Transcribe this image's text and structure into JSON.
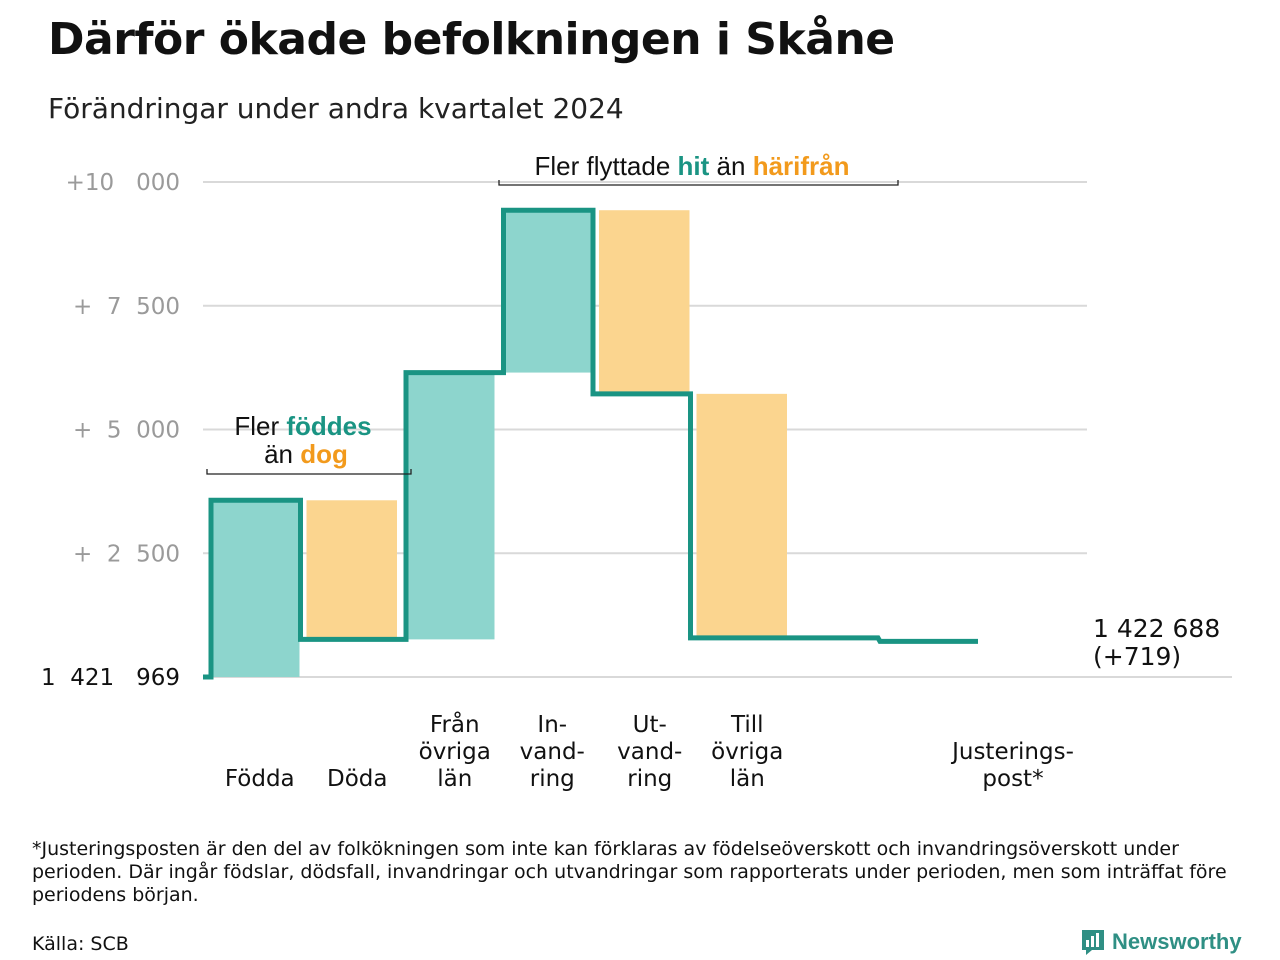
{
  "title": "Därför ökade befolkningen i Skåne",
  "subtitle": "Förändringar under andra kvartalet 2024",
  "colors": {
    "teal": "#1a9483",
    "teal_fill": "#8dd5cd",
    "orange": "#f29a1c",
    "orange_fill": "#fbd58f",
    "grid": "#d9d9d9",
    "tick": "#9a9a9a"
  },
  "chart_data": {
    "type": "waterfall",
    "baseline": 1421969,
    "end_total": 1422688,
    "net_change": 719,
    "ylim": [
      0,
      10000
    ],
    "yticks": [
      {
        "value": 10000,
        "label": "+10   000"
      },
      {
        "value": 7500,
        "label": "+  7  500"
      },
      {
        "value": 5000,
        "label": "+  5  000"
      },
      {
        "value": 2500,
        "label": "+  2  500"
      },
      {
        "value": 0,
        "label": "1  421   969"
      }
    ],
    "steps": [
      {
        "category": "Födda",
        "label_lines": [
          "Födda"
        ],
        "kind": "in",
        "start": 0,
        "end": 3570
      },
      {
        "category": "Döda",
        "label_lines": [
          "Döda"
        ],
        "kind": "out",
        "start": 3570,
        "end": 760
      },
      {
        "category": "Från övriga län",
        "label_lines": [
          "Från",
          "övriga",
          "län"
        ],
        "kind": "in",
        "start": 760,
        "end": 6150
      },
      {
        "category": "In-vandring",
        "label_lines": [
          "In-",
          "vand-",
          "ring"
        ],
        "kind": "in",
        "start": 6150,
        "end": 9430
      },
      {
        "category": "Ut-vandring",
        "label_lines": [
          "Ut-",
          "vand-",
          "ring"
        ],
        "kind": "out",
        "start": 9430,
        "end": 5720
      },
      {
        "category": "Till övriga län",
        "label_lines": [
          "Till",
          "övriga",
          "län"
        ],
        "kind": "out",
        "start": 5720,
        "end": 790
      },
      {
        "category": "Justeringspost*",
        "label_lines": [
          "Justerings-",
          "post*"
        ],
        "kind": "adjust",
        "start": 790,
        "end": 719
      }
    ],
    "end_label": "1 422 688",
    "end_change_label": "(+719)",
    "annotations": {
      "births": {
        "prefix": "Fler ",
        "highlight1": "föddes",
        "line2_prefix": "än ",
        "highlight2": "dog"
      },
      "migration": {
        "prefix": "Fler flyttade ",
        "highlight1": "hit",
        "middle": " än ",
        "highlight2": "härifrån"
      }
    }
  },
  "footnote": "*Justeringsposten är den del av folkökningen som inte kan förklaras av födelseöverskott och invandringsöverskott under perioden. Där ingår födslar, dödsfall, invandringar och utvandringar som rapporterats under perioden, men som inträffat före periodens början.",
  "source": "Källa: SCB",
  "logo_text": "Newsworthy",
  "logo_icon": "newsworthy-bar-chart-icon"
}
